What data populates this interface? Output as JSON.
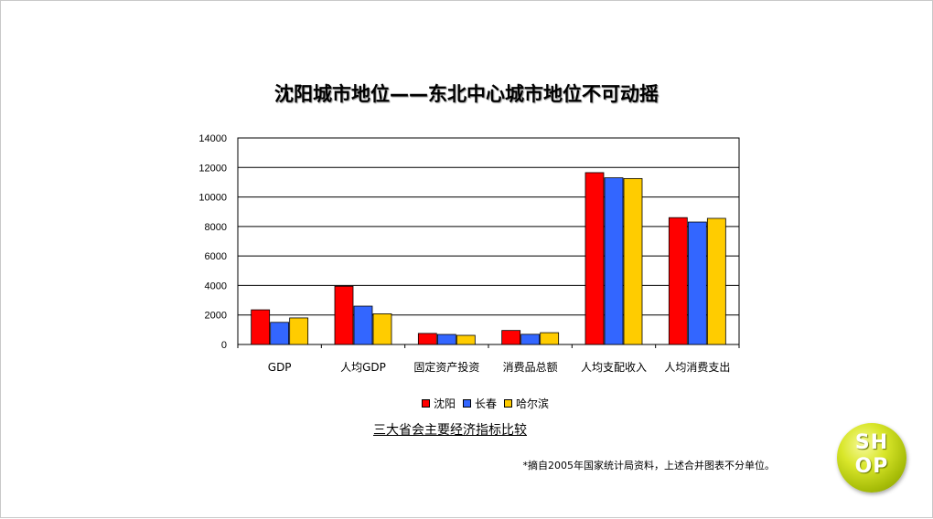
{
  "slide": {
    "title": "沈阳城市地位——东北中心城市地位不可动摇",
    "caption": "三大省会主要经济指标比较",
    "footnote": "*摘自2005年国家统计局资料，上述合并图表不分单位。",
    "logo": {
      "line1": "SH",
      "line2": "OP"
    }
  },
  "chart_data": {
    "type": "bar",
    "categories": [
      "GDP",
      "人均GDP",
      "固定资产投资",
      "消费品总额",
      "人均支配收入",
      "人均消费支出"
    ],
    "series": [
      {
        "name": "沈阳",
        "color": "#ff0000",
        "values": [
          2350,
          3950,
          750,
          950,
          11650,
          8600
        ]
      },
      {
        "name": "长春",
        "color": "#3366ff",
        "values": [
          1500,
          2600,
          680,
          690,
          11300,
          8300
        ]
      },
      {
        "name": "哈尔滨",
        "color": "#ffcc00",
        "values": [
          1800,
          2080,
          620,
          800,
          11250,
          8550
        ]
      }
    ],
    "yticks": [
      "0",
      "2000",
      "4000",
      "6000",
      "8000",
      "10000",
      "12000",
      "14000"
    ],
    "ylim": [
      0,
      14000
    ],
    "grid": true,
    "legend_position": "bottom"
  }
}
